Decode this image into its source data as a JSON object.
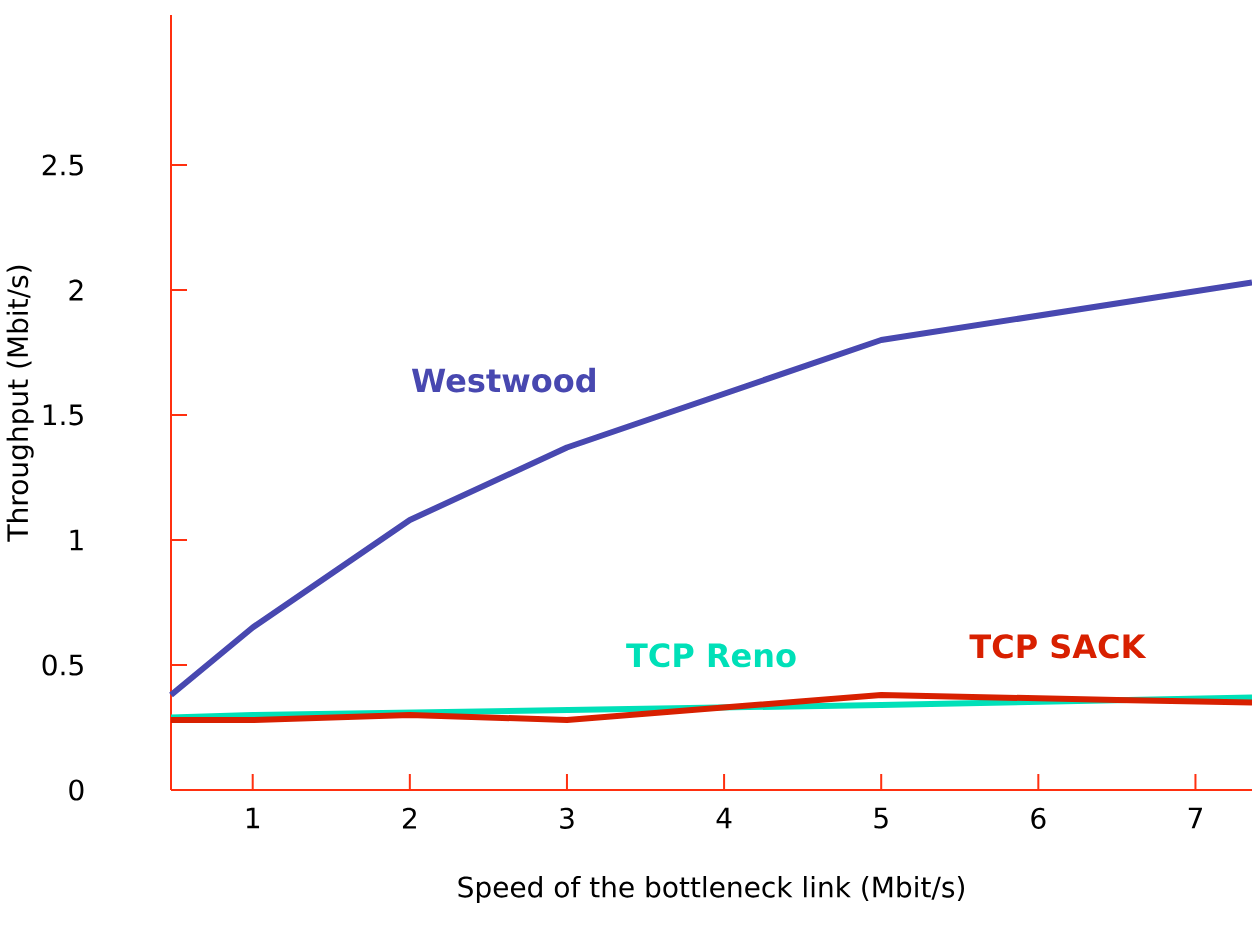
{
  "chart_data": {
    "type": "line",
    "xlabel": "Speed of the bottleneck link (Mbit/s)",
    "ylabel": "Throughput (Mbit/s)",
    "xlim": [
      0.48,
      7.36
    ],
    "ylim": [
      0,
      3.1
    ],
    "xticks": [
      1,
      2,
      3,
      4,
      5,
      6,
      7
    ],
    "yticks": [
      0,
      0.5,
      1,
      1.5,
      2,
      2.5
    ],
    "grid": false,
    "marker": "none",
    "line_style": "solid",
    "series": [
      {
        "name": "Westwood",
        "color": "#4848b0",
        "x": [
          0.48,
          1,
          2,
          3,
          5,
          7.36
        ],
        "values": [
          0.38,
          0.65,
          1.08,
          1.37,
          1.8,
          2.03
        ]
      },
      {
        "name": "TCP Reno",
        "color": "#00e0b8",
        "x": [
          0.48,
          1,
          2,
          3,
          5,
          7.36
        ],
        "values": [
          0.29,
          0.3,
          0.31,
          0.32,
          0.34,
          0.37
        ]
      },
      {
        "name": "TCP SACK",
        "color": "#d82000",
        "x": [
          0.48,
          1,
          2,
          3,
          4,
          5,
          6.5,
          7.36
        ],
        "values": [
          0.28,
          0.28,
          0.3,
          0.28,
          0.33,
          0.38,
          0.36,
          0.35
        ]
      }
    ]
  }
}
